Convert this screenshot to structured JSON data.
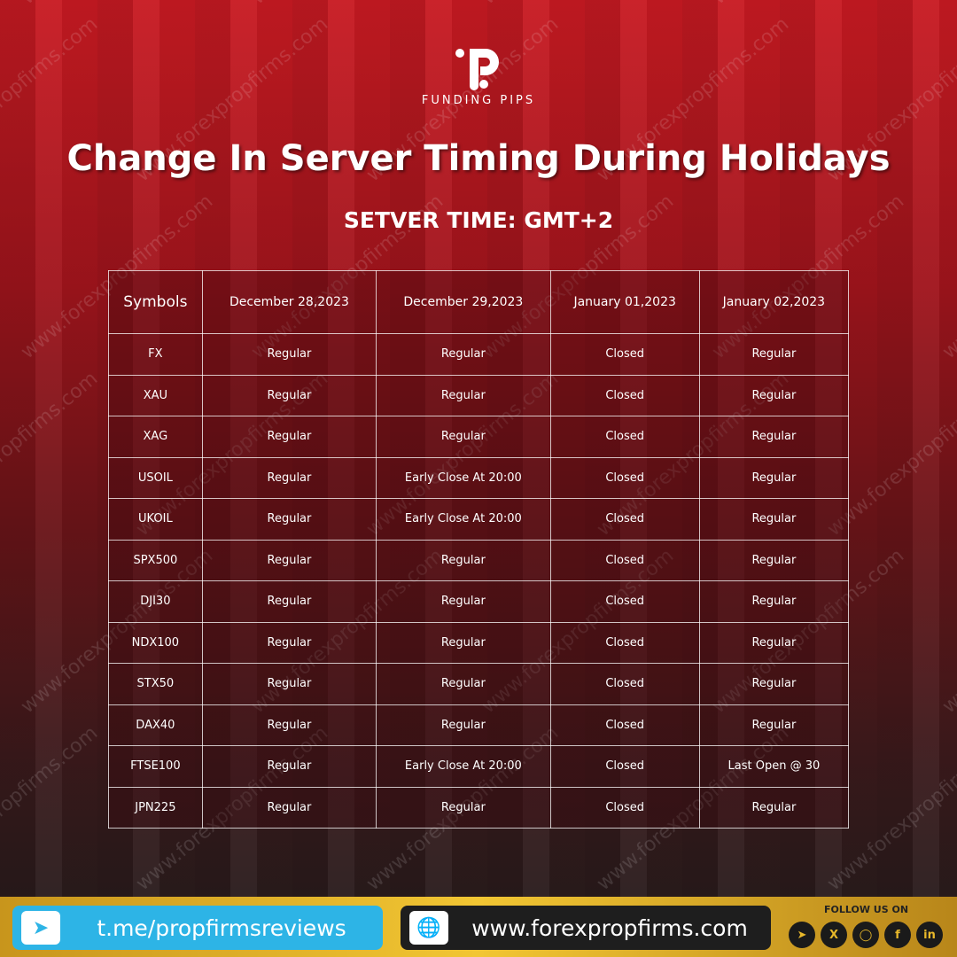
{
  "brand": {
    "name": "FUNDING PIPS"
  },
  "watermark": "www.forexpropfirms.com",
  "title": "Change In Server Timing During Holidays",
  "subtitle": "SETVER TIME: GMT+2",
  "table": {
    "headers": [
      "Symbols",
      "December 28,2023",
      "December 29,2023",
      "January 01,2023",
      "January 02,2023"
    ],
    "rows": [
      [
        "FX",
        "Regular",
        "Regular",
        "Closed",
        "Regular"
      ],
      [
        "XAU",
        "Regular",
        "Regular",
        "Closed",
        "Regular"
      ],
      [
        "XAG",
        "Regular",
        "Regular",
        "Closed",
        "Regular"
      ],
      [
        "USOIL",
        "Regular",
        "Early Close At 20:00",
        "Closed",
        "Regular"
      ],
      [
        "UKOIL",
        "Regular",
        "Early Close At 20:00",
        "Closed",
        "Regular"
      ],
      [
        "SPX500",
        "Regular",
        "Regular",
        "Closed",
        "Regular"
      ],
      [
        "DJI30",
        "Regular",
        "Regular",
        "Closed",
        "Regular"
      ],
      [
        "NDX100",
        "Regular",
        "Regular",
        "Closed",
        "Regular"
      ],
      [
        "STX50",
        "Regular",
        "Regular",
        "Closed",
        "Regular"
      ],
      [
        "DAX40",
        "Regular",
        "Regular",
        "Closed",
        "Regular"
      ],
      [
        "FTSE100",
        "Regular",
        "Early Close At 20:00",
        "Closed",
        "Last Open @ 30"
      ],
      [
        "JPN225",
        "Regular",
        "Regular",
        "Closed",
        "Regular"
      ]
    ]
  },
  "footer": {
    "telegram": "t.me/propfirmsreviews",
    "website": "www.forexpropfirms.com",
    "follow": "FOLLOW US ON",
    "socials": [
      "telegram-icon",
      "x-icon",
      "instagram-icon",
      "facebook-icon",
      "linkedin-icon"
    ]
  },
  "colors": {
    "background": "#a0141c",
    "footer": "#f2c633",
    "telegram": "#2db4e6",
    "website": "#1e1e1e"
  }
}
